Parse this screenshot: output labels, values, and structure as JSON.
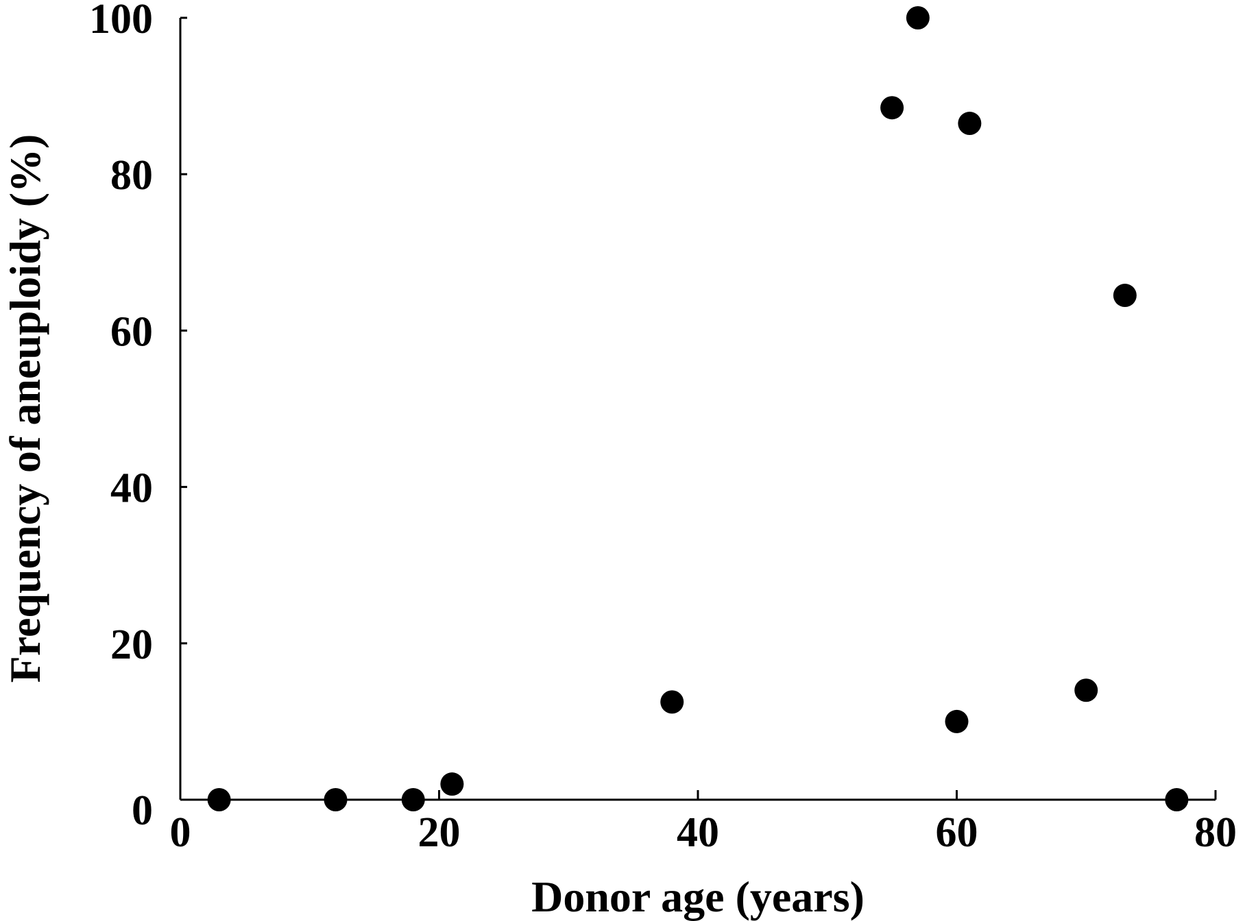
{
  "chart_data": {
    "type": "scatter",
    "xlabel": "Donor age (years)",
    "ylabel": "Frequency of aneuploidy (%)",
    "xlim": [
      0,
      80
    ],
    "ylim": [
      0,
      100
    ],
    "x_ticks": [
      0,
      20,
      40,
      60,
      80
    ],
    "y_ticks": [
      0,
      20,
      40,
      60,
      80,
      100
    ],
    "x_tick_labels": [
      "0",
      "20",
      "40",
      "60",
      "80"
    ],
    "y_tick_labels": [
      "0",
      "20",
      "40",
      "60",
      "80",
      "100"
    ],
    "grid": false,
    "legend": false,
    "marker_color": "#000000",
    "series": [
      {
        "x": [
          3,
          12,
          18,
          21,
          38,
          55,
          57,
          60,
          61,
          70,
          73,
          77
        ],
        "y": [
          0,
          0,
          0,
          2,
          12.5,
          88.5,
          100,
          10,
          86.5,
          14,
          64.5,
          0
        ]
      }
    ]
  }
}
